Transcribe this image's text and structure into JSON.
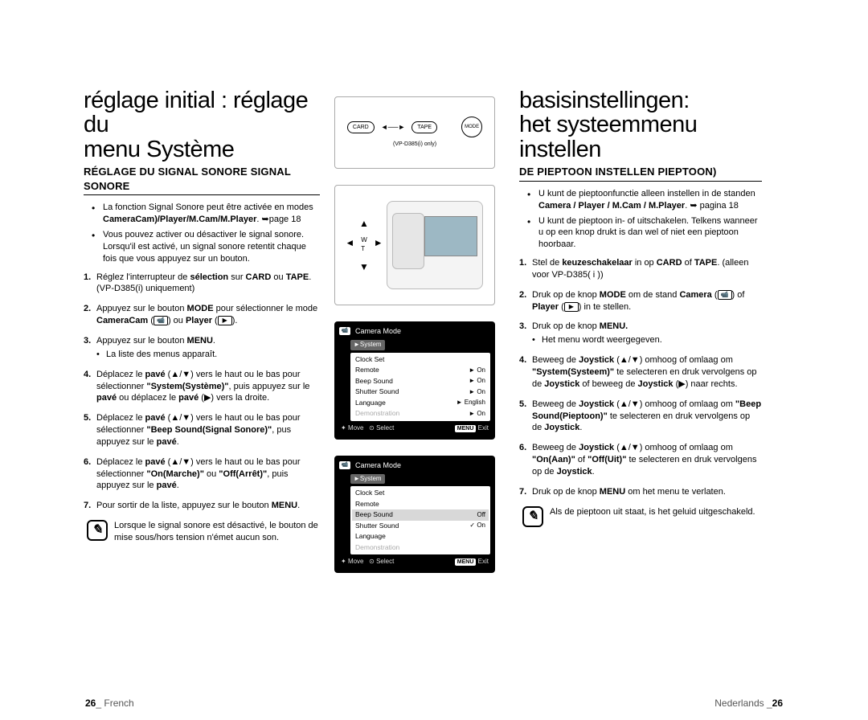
{
  "left": {
    "title_line1": "réglage initial : réglage du",
    "title_line2": "menu Système",
    "subtitle": "RÉGLAGE DU SIGNAL SONORE SIGNAL SONORE",
    "bullets": [
      "La fonction Signal Sonore peut être activée en modes <b>CameraCam)/Player/M.Cam/M.Player</b>. ➥page 18",
      "Vous pouvez activer ou désactiver le signal sonore. Lorsqu'il est activé, un signal sonore retentit chaque fois que vous appuyez sur un bouton."
    ],
    "steps": [
      "Réglez l'interrupteur de <b>sélection</b> sur <b>CARD</b> ou <b>TAPE</b>. (VP-D385(i) uniquement)",
      "Appuyez sur le bouton <b>MODE</b> pour sélectionner le mode <b>CameraCam</b> (<span class='ico'>📹</span>) ou <b>Player</b> (<span class='ico'>▶</span>).",
      "Appuyez sur le bouton <b>MENU</b>.<div class='subbullet'>La liste des menus apparaît.</div>",
      "Déplacez le <b>pavé</b> (▲/▼) vers le haut ou le bas pour sélectionner <b>\"System(Système)\"</b>, puis appuyez sur le <b>pavé</b> ou déplacez le <b>pavé</b> (▶) vers la droite.",
      "Déplacez le <b>pavé</b> (▲/▼) vers le haut ou le bas pour sélectionner <b>\"Beep Sound(Signal Sonore)\"</b>, pus appuyez sur le <b>pavé</b>.",
      "Déplacez le <b>pavé</b> (▲/▼) vers le haut ou le bas pour sélectionner <b>\"On(Marche)\"</b> ou <b>\"Off(Arrêt)\"</b>, puis appuyez sur le <b>pavé</b>.",
      "Pour sortir de la liste, appuyez sur le bouton <b>MENU</b>."
    ],
    "note": "Lorsque le signal sonore est désactivé, le bouton de mise sous/hors tension n'émet aucun son.",
    "footer_num": "26",
    "footer_lang": "_ French"
  },
  "right": {
    "title_line1": "basisinstellingen:",
    "title_line2": "het systeemmenu instellen",
    "subtitle": "DE PIEPTOON INSTELLEN PIEPTOON)",
    "bullets": [
      "U kunt de pieptoonfunctie alleen instellen in de standen <b>Camera / Player / M.Cam / M.Player</b>. ➥ pagina 18",
      "U kunt de pieptoon in- of uitschakelen. Telkens wanneer u op een knop drukt is dan wel of niet een pieptoon hoorbaar."
    ],
    "steps": [
      "Stel de <b>keuzeschakelaar</b> in op <b>CARD</b> of <b>TAPE</b>. (alleen voor VP-D385( i ))",
      "Druk op de knop <b>MODE</b> om de stand <b>Camera</b> (<span class='ico'>📹</span>) of <b>Player</b> (<span class='ico'>▶</span>) in te stellen.",
      "Druk op de knop <b>MENU.</b><div class='subbullet'>Het menu wordt weergegeven.</div>",
      "Beweeg de <b>Joystick</b> (▲/▼) omhoog of omlaag om <b>\"System(Systeem)\"</b> te selecteren en druk vervolgens op de <b>Joystick</b> of beweeg de <b>Joystick</b> (▶) naar rechts.",
      "Beweeg de <b>Joystick</b> (▲/▼) omhoog of omlaag om <b>\"Beep Sound(Pieptoon)\"</b> te selecteren en druk vervolgens op de <b>Joystick</b>.",
      "Beweeg de <b>Joystick</b> (▲/▼) omhoog of omlaag om <b>\"On(Aan)\"</b> of <b>\"Off(Uit)\"</b> te selecteren en druk vervolgens op de <b>Joystick</b>.",
      "Druk op de knop <b>MENU</b> om het menu te verlaten."
    ],
    "note": "Als de pieptoon uit staat, is het geluid uitgeschakeld.",
    "footer_lang": "Nederlands _",
    "footer_num": "26"
  },
  "fig_top": {
    "card": "CARD",
    "tape": "TAPE",
    "mode": "MODE",
    "sub": "(VP-D385(i) only)"
  },
  "menu1": {
    "title": "Camera Mode",
    "system": "►System",
    "rows": [
      {
        "k": "Clock Set",
        "v": ""
      },
      {
        "k": "Remote",
        "v": "► On"
      },
      {
        "k": "Beep Sound",
        "v": "► On"
      },
      {
        "k": "Shutter Sound",
        "v": "► On"
      },
      {
        "k": "Language",
        "v": "► English"
      },
      {
        "k": "Demonstration",
        "v": "► On",
        "dim": true
      }
    ],
    "move": "Move",
    "select": "Select",
    "menu": "MENU",
    "exit": "Exit"
  },
  "menu2": {
    "title": "Camera Mode",
    "system": "►System",
    "rows": [
      {
        "k": "Clock Set",
        "v": ""
      },
      {
        "k": "Remote",
        "v": ""
      },
      {
        "k": "Beep Sound",
        "v": "  Off",
        "sel": true
      },
      {
        "k": "Shutter Sound",
        "v": "✓ On"
      },
      {
        "k": "Language",
        "v": ""
      },
      {
        "k": "Demonstration",
        "v": "",
        "dim": true
      }
    ],
    "move": "Move",
    "select": "Select",
    "menu": "MENU",
    "exit": "Exit"
  }
}
